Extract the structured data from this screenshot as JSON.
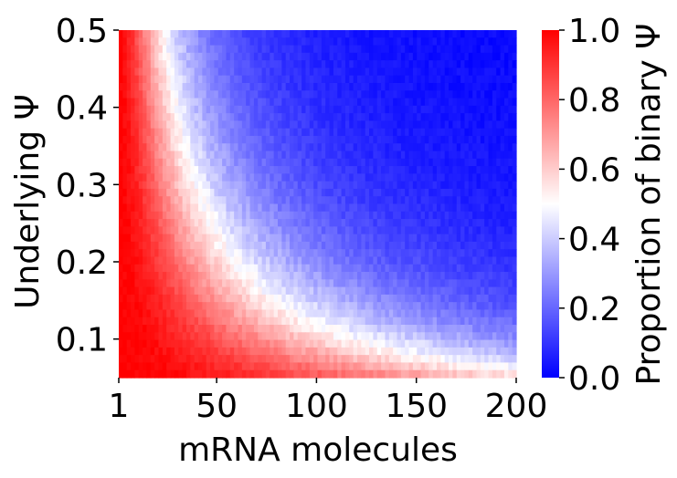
{
  "chart_data": {
    "type": "heatmap",
    "title": "",
    "xlabel": "mRNA molecules",
    "ylabel": "Underlying Ψ",
    "colorbar_label": "Proportion of binary Ψ",
    "x_range": [
      1,
      200
    ],
    "y_range": [
      0.05,
      0.5
    ],
    "x_ticks": [
      "1",
      "50",
      "100",
      "150",
      "200"
    ],
    "x_tick_values": [
      1,
      50,
      100,
      150,
      200
    ],
    "y_ticks": [
      "0.1",
      "0.2",
      "0.3",
      "0.4",
      "0.5"
    ],
    "y_tick_values": [
      0.1,
      0.2,
      0.3,
      0.4,
      0.5
    ],
    "colorbar_ticks": [
      "0.0",
      "0.2",
      "0.4",
      "0.6",
      "0.8",
      "1.0"
    ],
    "colorbar_tick_values": [
      0,
      0.2,
      0.4,
      0.6,
      0.8,
      1.0
    ],
    "value_range": [
      0,
      1
    ],
    "colormap": [
      "#0000ff",
      "#ffffff",
      "#ff0000"
    ],
    "grid": false,
    "description_of_values": "Proportion of binary Ψ; approximately 1 at few molecules / low Ψ, decreasing toward 0 at many molecules / high Ψ, with a white (≈0.5) band following roughly molecules × Ψ ≈ 12"
  }
}
